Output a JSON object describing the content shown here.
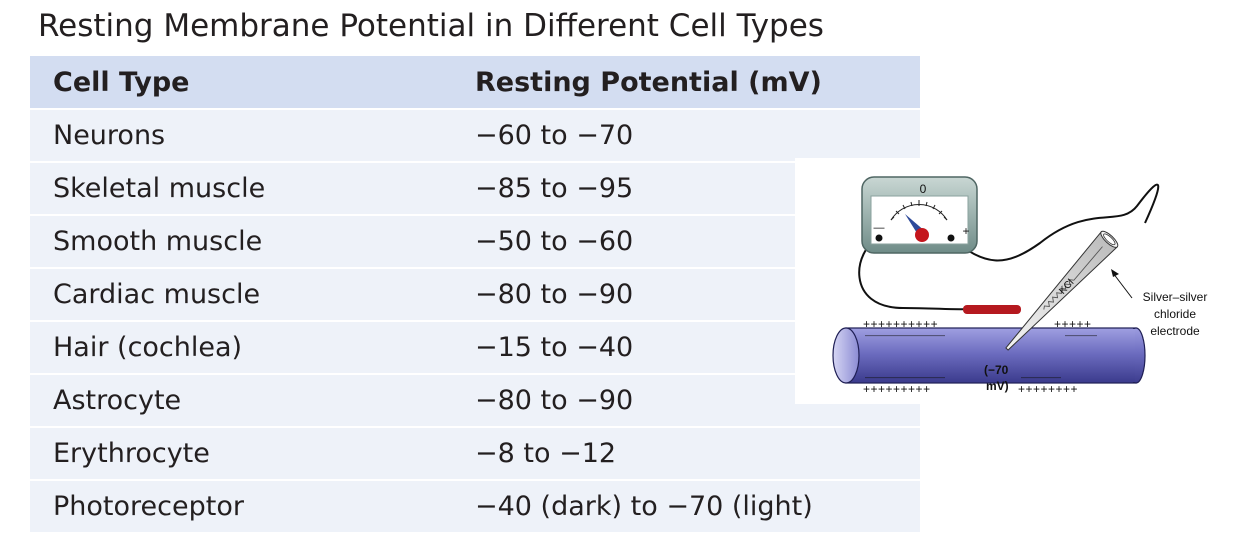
{
  "title": "Resting Membrane Potential in Different Cell Types",
  "table": {
    "headers": [
      "Cell Type",
      "Resting Potential (mV)"
    ],
    "rows": [
      [
        "Neurons",
        "−60 to −70"
      ],
      [
        "Skeletal muscle",
        "−85 to −95"
      ],
      [
        "Smooth muscle",
        "−50 to −60"
      ],
      [
        "Cardiac muscle",
        "−80 to −90"
      ],
      [
        "Hair (cochlea)",
        "−15 to −40"
      ],
      [
        "Astrocyte",
        "−80 to −90"
      ],
      [
        "Erythrocyte",
        "−8 to −12"
      ],
      [
        "Photoreceptor",
        "−40 (dark) to −70 (light)"
      ]
    ]
  },
  "diagram": {
    "meter_zero": "0",
    "meter_minus": "—",
    "meter_plus": "+",
    "electrode_fill": "KCl",
    "electrode_label": [
      "Silver–silver",
      "chloride",
      "electrode"
    ],
    "charges_top_left": "++++++++++",
    "charges_top_right": "+++++",
    "charges_inner_top_left": "——————————",
    "charges_inner_top_right": "————",
    "charges_inner_bottom_left": "——————————",
    "charges_inner_bottom_right": "—————",
    "charges_bottom_left": "+++++++++",
    "charges_bottom_right": "++++++++",
    "potential_line1": "(−70",
    "potential_line2": "mV)",
    "colors": {
      "header_bg": "#d3ddf1",
      "row_bg": "#eef2f9",
      "needle": "#2e4a9a",
      "pivot": "#c4151c",
      "ground_electrode": "#b5191f",
      "cell_fill": "#7a7ac8"
    }
  }
}
